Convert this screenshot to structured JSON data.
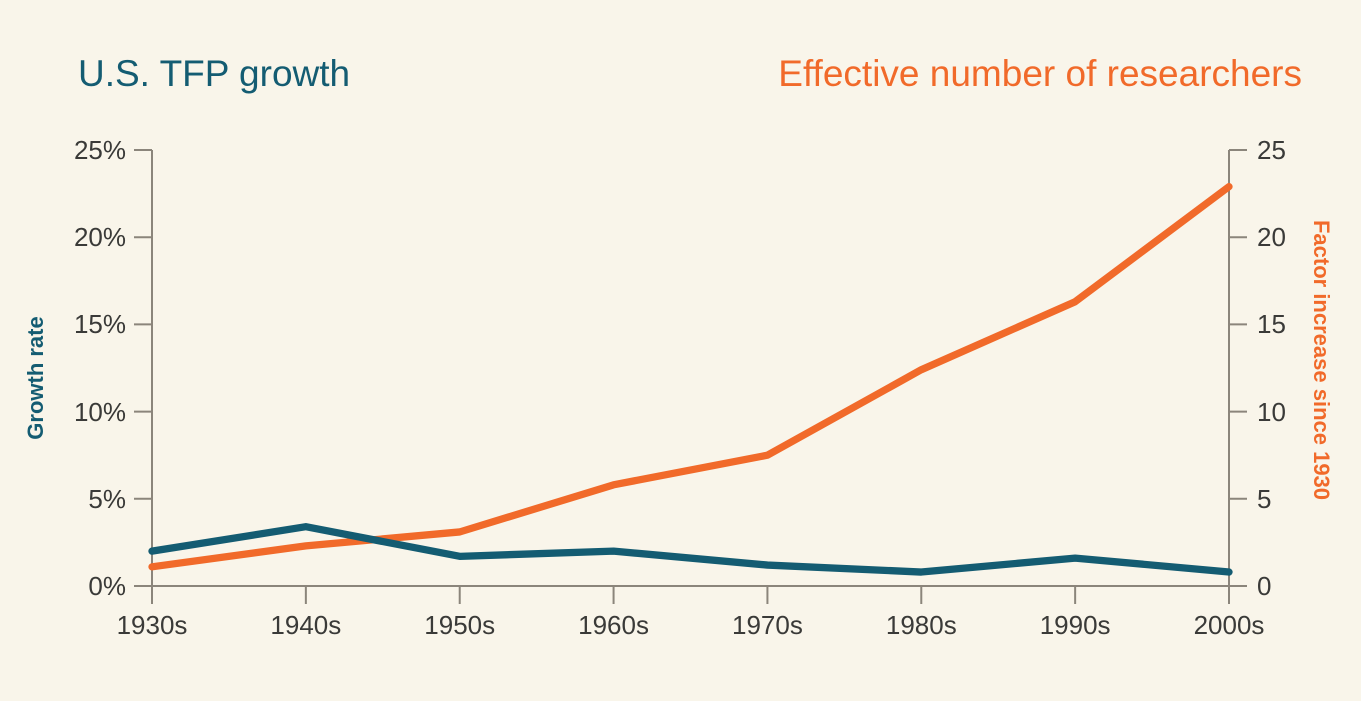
{
  "colors": {
    "background": "#F9F5EA",
    "axis_line": "#8B857B",
    "tick_text": "#3A3A38",
    "tfp_teal": "#145C72",
    "researchers_orange": "#F16A2A"
  },
  "titles": {
    "left": "U.S. TFP growth",
    "right": "Effective number of researchers"
  },
  "chart_data": {
    "type": "line",
    "categories": [
      "1930s",
      "1940s",
      "1950s",
      "1960s",
      "1970s",
      "1980s",
      "1990s",
      "2000s"
    ],
    "series": [
      {
        "name": "U.S. TFP growth",
        "axis": "left",
        "color": "#145C72",
        "unit": "%",
        "values": [
          2.0,
          3.4,
          1.7,
          2.0,
          1.2,
          0.8,
          1.6,
          0.8
        ]
      },
      {
        "name": "Effective number of researchers",
        "axis": "right",
        "color": "#F16A2A",
        "unit": "factor",
        "values": [
          1.1,
          2.3,
          3.1,
          5.8,
          7.5,
          12.4,
          16.3,
          22.9
        ]
      }
    ],
    "left_axis": {
      "label": "Growth rate",
      "range": [
        0,
        25
      ],
      "tick_step": 5,
      "tick_labels": [
        "0%",
        "5%",
        "10%",
        "15%",
        "20%",
        "25%"
      ]
    },
    "right_axis": {
      "label": "Factor increase since 1930",
      "range": [
        0,
        25
      ],
      "tick_step": 5,
      "tick_labels": [
        "0",
        "5",
        "10",
        "15",
        "20",
        "25"
      ]
    },
    "x_axis": {
      "tick_labels": [
        "1930s",
        "1940s",
        "1950s",
        "1960s",
        "1970s",
        "1980s",
        "1990s",
        "2000s"
      ]
    },
    "grid": false,
    "legend_position": "colored-titles-as-legend"
  }
}
